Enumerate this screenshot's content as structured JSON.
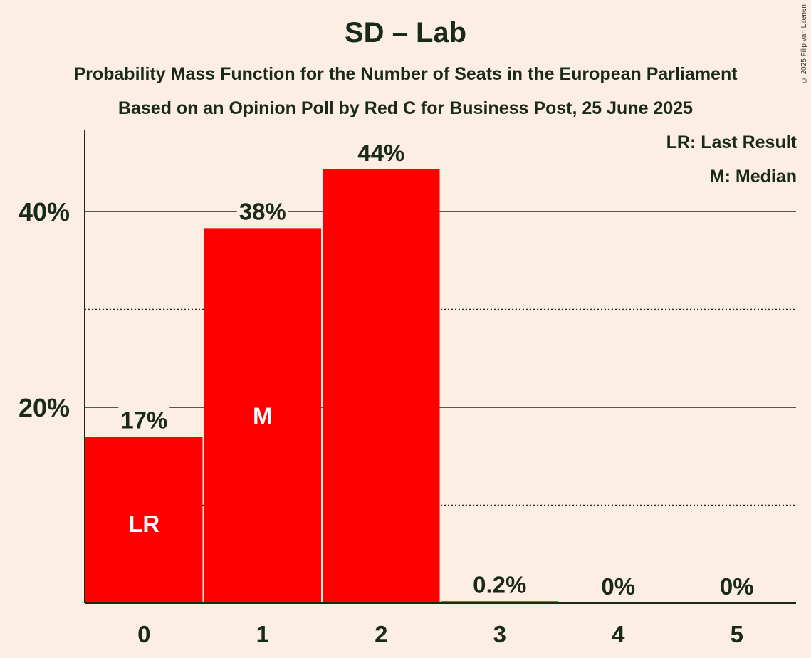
{
  "chart_data": {
    "type": "bar",
    "title": "SD – Lab",
    "subtitle_line1": "Probability Mass Function for the Number of Seats in the European Parliament",
    "subtitle_line2": "Based on an Opinion Poll by Red C for Business Post, 25 June 2025",
    "categories": [
      "0",
      "1",
      "2",
      "3",
      "4",
      "5"
    ],
    "values": [
      17,
      38.3,
      44.3,
      0.2,
      0,
      0
    ],
    "value_labels": [
      "17%",
      "38%",
      "44%",
      "0.2%",
      "0%",
      "0%"
    ],
    "bar_markers": [
      "LR",
      "M",
      "",
      "",
      "",
      ""
    ],
    "ylim": [
      0,
      48
    ],
    "y_major_ticks": [
      20,
      40
    ],
    "y_major_tick_labels": [
      "20%",
      "40%"
    ],
    "y_minor_gridlines": [
      10,
      30
    ],
    "bar_color": "#FF0000",
    "legend": {
      "last_result": "LR: Last Result",
      "median": "M: Median"
    },
    "copyright": "© 2025 Filip van Laenen"
  }
}
